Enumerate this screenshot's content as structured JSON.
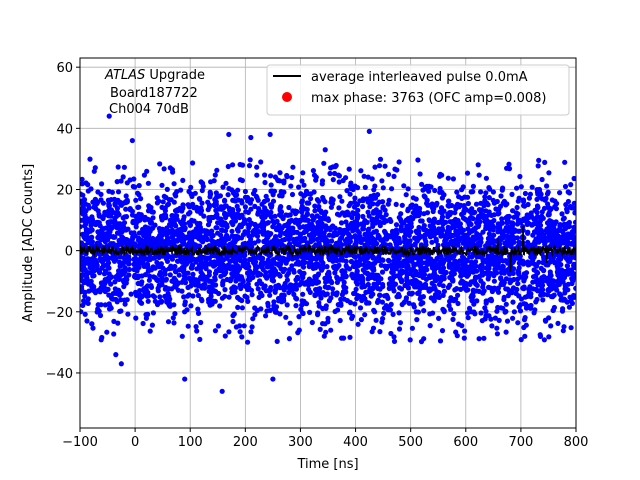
{
  "chart_data": {
    "type": "scatter",
    "xlabel": "Time [ns]",
    "ylabel": "Amplitude [ADC Counts]",
    "xlim": [
      -100,
      800
    ],
    "ylim": [
      -58,
      63
    ],
    "x_ticks": [
      -100,
      0,
      100,
      200,
      300,
      400,
      500,
      600,
      700,
      800
    ],
    "y_ticks": [
      -40,
      -20,
      0,
      20,
      40,
      60
    ],
    "grid": true,
    "legend_position": "upper-right",
    "annotation": {
      "atlas": "ATLAS",
      "upgrade": " Upgrade",
      "board": "Board187722",
      "channel": "Ch004 70dB"
    },
    "series": [
      {
        "name": "average interleaved pulse 0.0mA",
        "kind": "line",
        "color": "#000000",
        "description_values": "mean approx 0 across -100..800 ns with small fluctuations",
        "x_start": -100,
        "x_end": 800,
        "baseline": 0,
        "noise_amplitude": 1.5,
        "spikes": [
          {
            "x": 658,
            "y": 4
          },
          {
            "x": 681,
            "y": -7
          },
          {
            "x": 704,
            "y": 8
          },
          {
            "x": 747,
            "y": -4
          }
        ]
      },
      {
        "name": "max phase: 3763 (OFC amp=0.008)",
        "kind": "scatter",
        "color": "#0000ff",
        "marker_color": "#ff0000",
        "x_start": -100,
        "x_end": 800,
        "spread_sigma": 11,
        "clip_band": 30,
        "outliers": [
          {
            "x": -47,
            "y": 44
          },
          {
            "x": -35,
            "y": -34
          },
          {
            "x": -25,
            "y": -37
          },
          {
            "x": -5,
            "y": 36
          },
          {
            "x": 90,
            "y": -42
          },
          {
            "x": 158,
            "y": -46
          },
          {
            "x": 170,
            "y": 38
          },
          {
            "x": 210,
            "y": 37
          },
          {
            "x": 245,
            "y": 38
          },
          {
            "x": 250,
            "y": -42
          },
          {
            "x": 425,
            "y": 39
          },
          {
            "x": 345,
            "y": 33
          }
        ]
      }
    ],
    "colors": {
      "average_line": "#000000",
      "scatter": "#0000ff",
      "legend_marker": "#ff0000",
      "grid": "#b0b0b0"
    }
  }
}
